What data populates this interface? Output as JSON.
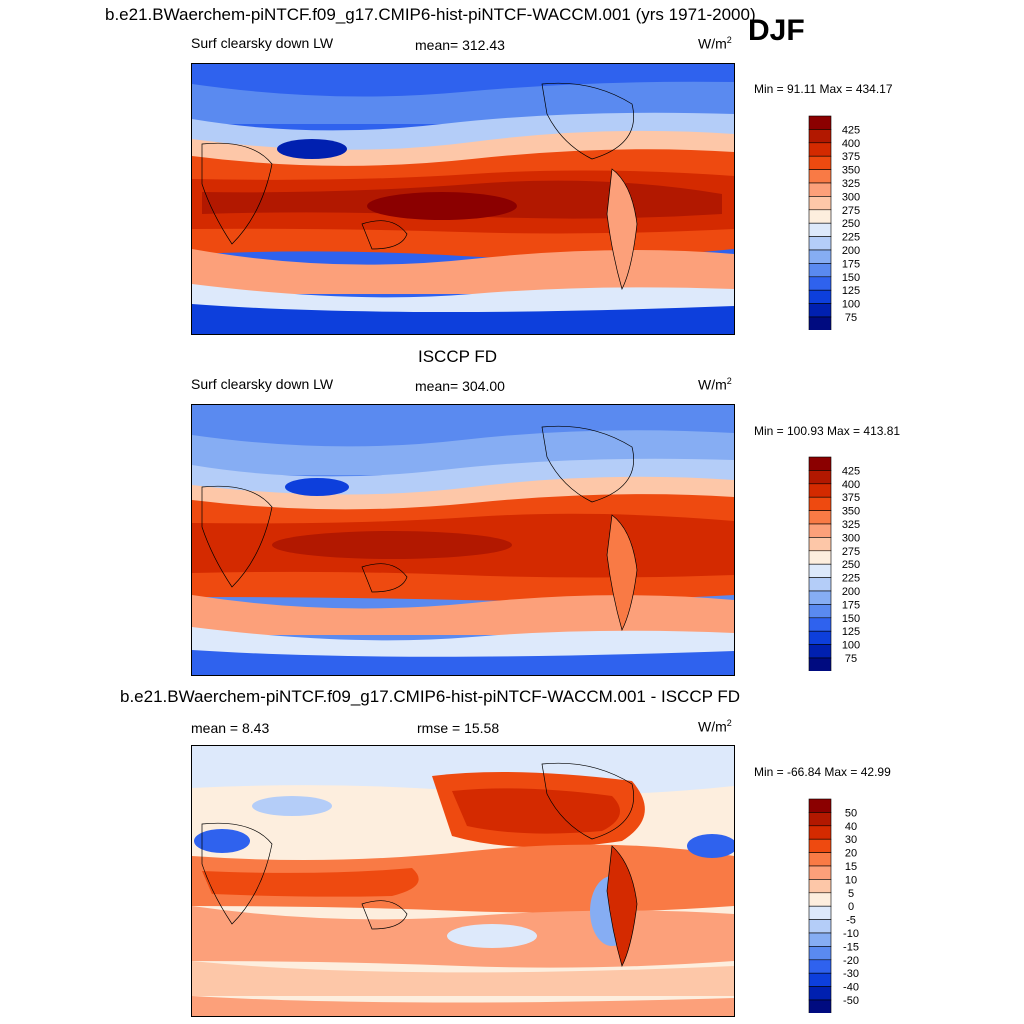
{
  "header": {
    "title": "b.e21.BWaerchem-piNTCF.f09_g17.CMIP6-hist-piNTCF-WACCM.001 (yrs 1971-2000)",
    "season": "DJF"
  },
  "panels": [
    {
      "id": "model",
      "title": "",
      "variable": "Surf clearsky down LW",
      "stat": "mean= 312.43",
      "units": "W/m",
      "units_sup": "2",
      "minmax": "Min =  91.11 Max = 434.17",
      "colorbar": {
        "labels": [
          "425",
          "400",
          "375",
          "350",
          "325",
          "300",
          "275",
          "250",
          "225",
          "200",
          "175",
          "150",
          "125",
          "100",
          "75"
        ],
        "colors": [
          "#8b0000",
          "#b21800",
          "#d42a00",
          "#ee4a10",
          "#f97a45",
          "#fca07a",
          "#fdc7a8",
          "#fdeede",
          "#dde9fb",
          "#b4cdf8",
          "#86adf3",
          "#5a8af0",
          "#2f62ee",
          "#0d3fdc",
          "#0020b0",
          "#000b80"
        ]
      }
    },
    {
      "id": "obs",
      "title": "ISCCP FD",
      "variable": "Surf clearsky down LW",
      "stat": "mean= 304.00",
      "units": "W/m",
      "units_sup": "2",
      "minmax": "Min = 100.93 Max = 413.81",
      "colorbar": {
        "labels": [
          "425",
          "400",
          "375",
          "350",
          "325",
          "300",
          "275",
          "250",
          "225",
          "200",
          "175",
          "150",
          "125",
          "100",
          "75"
        ],
        "colors": [
          "#8b0000",
          "#b21800",
          "#d42a00",
          "#ee4a10",
          "#f97a45",
          "#fca07a",
          "#fdc7a8",
          "#fdeede",
          "#dde9fb",
          "#b4cdf8",
          "#86adf3",
          "#5a8af0",
          "#2f62ee",
          "#0d3fdc",
          "#0020b0",
          "#000b80"
        ]
      }
    },
    {
      "id": "diff",
      "title": "b.e21.BWaerchem-piNTCF.f09_g17.CMIP6-hist-piNTCF-WACCM.001 - ISCCP FD",
      "variable": "mean =   8.43",
      "stat": "rmse =  15.58",
      "units": "W/m",
      "units_sup": "2",
      "minmax": "Min = -66.84 Max =  42.99",
      "colorbar": {
        "labels": [
          "50",
          "40",
          "30",
          "20",
          "15",
          "10",
          "5",
          "0",
          "-5",
          "-10",
          "-15",
          "-20",
          "-30",
          "-40",
          "-50"
        ],
        "colors": [
          "#8b0000",
          "#b21800",
          "#d42a00",
          "#ee4a10",
          "#f97a45",
          "#fca07a",
          "#fdc7a8",
          "#fdeede",
          "#dde9fb",
          "#b4cdf8",
          "#86adf3",
          "#5a8af0",
          "#2f62ee",
          "#0d3fdc",
          "#0020b0",
          "#000b80"
        ]
      }
    }
  ]
}
